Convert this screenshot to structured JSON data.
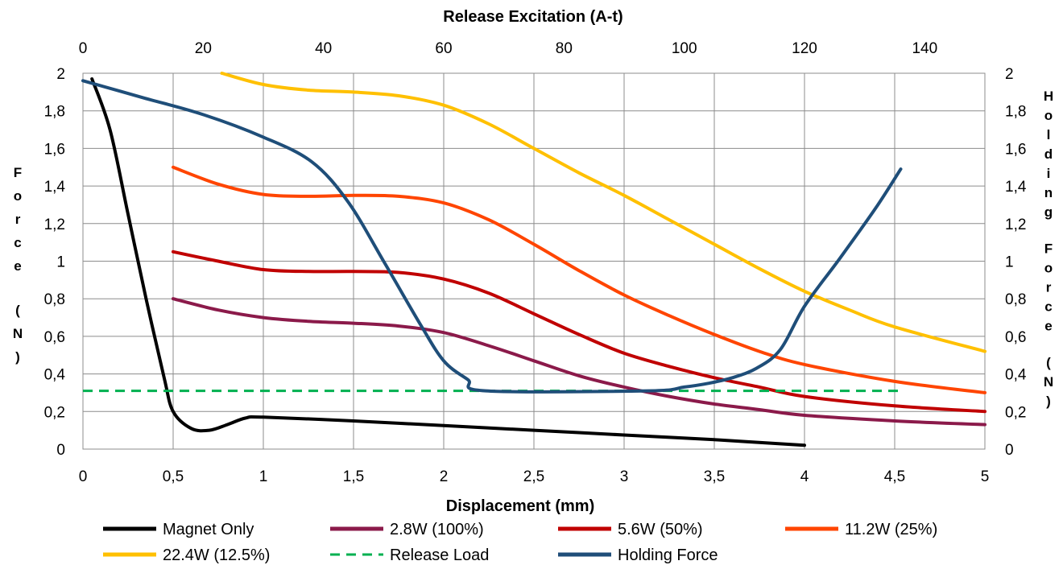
{
  "chart_data": {
    "type": "line",
    "xlabel": "Displacement (mm)",
    "x2label": "Release Excitation (A-t)",
    "ylabel": "Force (N)",
    "y2label": "Holding Force (N)",
    "xlim": [
      0,
      5
    ],
    "x2lim": [
      0,
      150
    ],
    "ylim": [
      0,
      2
    ],
    "x_ticks": [
      "0",
      "0,5",
      "1",
      "1,5",
      "2",
      "2,5",
      "3",
      "3,5",
      "4",
      "4,5",
      "5"
    ],
    "x2_ticks": [
      "0",
      "20",
      "40",
      "60",
      "80",
      "100",
      "120",
      "140"
    ],
    "y_ticks": [
      "0",
      "0,2",
      "0,4",
      "0,6",
      "0,8",
      "1",
      "1,2",
      "1,4",
      "1,6",
      "1,8",
      "2"
    ],
    "grid": true,
    "legend_position": "bottom",
    "series": [
      {
        "name": "Magnet Only",
        "axis": "bottom",
        "color": "#000000",
        "dash": false,
        "points": [
          [
            0.05,
            1.97
          ],
          [
            0.15,
            1.7
          ],
          [
            0.25,
            1.25
          ],
          [
            0.35,
            0.8
          ],
          [
            0.45,
            0.38
          ],
          [
            0.5,
            0.2
          ],
          [
            0.6,
            0.11
          ],
          [
            0.7,
            0.1
          ],
          [
            0.8,
            0.13
          ],
          [
            0.9,
            0.165
          ],
          [
            1.0,
            0.17
          ],
          [
            1.5,
            0.15
          ],
          [
            2.0,
            0.125
          ],
          [
            2.5,
            0.1
          ],
          [
            3.0,
            0.075
          ],
          [
            3.5,
            0.05
          ],
          [
            4.0,
            0.02
          ]
        ]
      },
      {
        "name": "2.8W (100%)",
        "axis": "bottom",
        "color": "#8B1A4A",
        "dash": false,
        "points": [
          [
            0.5,
            0.8
          ],
          [
            0.75,
            0.74
          ],
          [
            1.0,
            0.7
          ],
          [
            1.25,
            0.68
          ],
          [
            1.5,
            0.67
          ],
          [
            1.75,
            0.655
          ],
          [
            2.0,
            0.62
          ],
          [
            2.25,
            0.55
          ],
          [
            2.5,
            0.47
          ],
          [
            2.75,
            0.39
          ],
          [
            3.0,
            0.33
          ],
          [
            3.25,
            0.28
          ],
          [
            3.5,
            0.24
          ],
          [
            3.75,
            0.21
          ],
          [
            4.0,
            0.18
          ],
          [
            4.5,
            0.15
          ],
          [
            5.0,
            0.13
          ]
        ]
      },
      {
        "name": "5.6W (50%)",
        "axis": "bottom",
        "color": "#C00000",
        "dash": false,
        "points": [
          [
            0.5,
            1.05
          ],
          [
            0.75,
            1.0
          ],
          [
            1.0,
            0.955
          ],
          [
            1.25,
            0.945
          ],
          [
            1.5,
            0.945
          ],
          [
            1.75,
            0.94
          ],
          [
            2.0,
            0.905
          ],
          [
            2.25,
            0.83
          ],
          [
            2.5,
            0.72
          ],
          [
            2.75,
            0.61
          ],
          [
            3.0,
            0.51
          ],
          [
            3.25,
            0.44
          ],
          [
            3.5,
            0.38
          ],
          [
            3.75,
            0.33
          ],
          [
            4.0,
            0.28
          ],
          [
            4.5,
            0.23
          ],
          [
            5.0,
            0.2
          ]
        ]
      },
      {
        "name": "11.2W (25%)",
        "axis": "bottom",
        "color": "#FF4500",
        "dash": false,
        "points": [
          [
            0.5,
            1.5
          ],
          [
            0.75,
            1.41
          ],
          [
            1.0,
            1.355
          ],
          [
            1.25,
            1.345
          ],
          [
            1.5,
            1.35
          ],
          [
            1.75,
            1.345
          ],
          [
            2.0,
            1.31
          ],
          [
            2.25,
            1.22
          ],
          [
            2.5,
            1.09
          ],
          [
            2.75,
            0.95
          ],
          [
            3.0,
            0.82
          ],
          [
            3.25,
            0.71
          ],
          [
            3.5,
            0.61
          ],
          [
            3.75,
            0.52
          ],
          [
            4.0,
            0.45
          ],
          [
            4.5,
            0.36
          ],
          [
            5.0,
            0.3
          ]
        ]
      },
      {
        "name": "22.4W (12.5%)",
        "axis": "bottom",
        "color": "#FFC000",
        "dash": false,
        "points": [
          [
            0.77,
            2.0
          ],
          [
            1.0,
            1.94
          ],
          [
            1.25,
            1.91
          ],
          [
            1.5,
            1.9
          ],
          [
            1.75,
            1.88
          ],
          [
            2.0,
            1.83
          ],
          [
            2.25,
            1.73
          ],
          [
            2.5,
            1.6
          ],
          [
            2.75,
            1.47
          ],
          [
            3.0,
            1.35
          ],
          [
            3.25,
            1.22
          ],
          [
            3.5,
            1.09
          ],
          [
            3.75,
            0.96
          ],
          [
            4.0,
            0.84
          ],
          [
            4.25,
            0.74
          ],
          [
            4.5,
            0.65
          ],
          [
            5.0,
            0.52
          ]
        ]
      },
      {
        "name": "Release Load",
        "axis": "bottom",
        "color": "#00B050",
        "dash": true,
        "points": [
          [
            0.0,
            0.31
          ],
          [
            4.55,
            0.31
          ]
        ]
      },
      {
        "name": "Holding Force",
        "axis": "top",
        "color": "#1F4E79",
        "dash": false,
        "points": [
          [
            0,
            1.96
          ],
          [
            10,
            1.87
          ],
          [
            20,
            1.78
          ],
          [
            30,
            1.66
          ],
          [
            38,
            1.53
          ],
          [
            44,
            1.32
          ],
          [
            50,
            1.0
          ],
          [
            56,
            0.67
          ],
          [
            60,
            0.47
          ],
          [
            64,
            0.37
          ],
          [
            67,
            0.31
          ],
          [
            94,
            0.31
          ],
          [
            100,
            0.33
          ],
          [
            104,
            0.35
          ],
          [
            108,
            0.38
          ],
          [
            112,
            0.43
          ],
          [
            116,
            0.53
          ],
          [
            120,
            0.76
          ],
          [
            126,
            1.02
          ],
          [
            132,
            1.29
          ],
          [
            136,
            1.49
          ]
        ]
      }
    ]
  }
}
